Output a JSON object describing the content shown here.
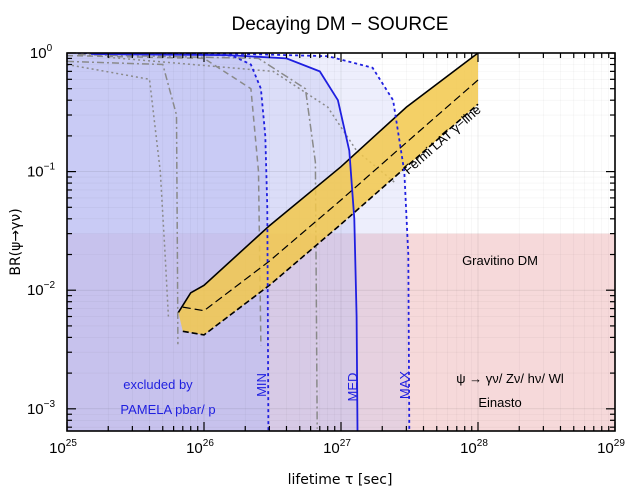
{
  "chart_data": {
    "type": "line",
    "title": "Decaying DM − SOURCE",
    "xlabel": "lifetime τ [sec]",
    "ylabel": "BR(ψ→γν)",
    "x_scale": "log",
    "y_scale": "log",
    "xlim": [
      1e+25,
      1e+29
    ],
    "ylim": [
      0.00065,
      1.0
    ],
    "x_ticks": [
      {
        "base": "10",
        "exp": "25",
        "value": 1e+25
      },
      {
        "base": "10",
        "exp": "26",
        "value": 1e+26
      },
      {
        "base": "10",
        "exp": "27",
        "value": 1e+27
      },
      {
        "base": "10",
        "exp": "28",
        "value": 1e+28
      },
      {
        "base": "10",
        "exp": "29",
        "value": 1e+29
      }
    ],
    "y_ticks": [
      {
        "base": "10",
        "exp": "0",
        "value": 1
      },
      {
        "base": "10",
        "exp": "−1",
        "value": 0.1
      },
      {
        "base": "10",
        "exp": "−2",
        "value": 0.01
      },
      {
        "base": "10",
        "exp": "−3",
        "value": 0.001
      }
    ],
    "series": [
      {
        "name": "MIN",
        "color": "#1f1fe0",
        "style": "dotted",
        "x": [
          1.2e+25,
          8e+25,
          1.6e+26,
          2.2e+26,
          2.6e+26,
          2.8e+26,
          2.9e+26,
          2.95e+26
        ],
        "y": [
          1.0,
          0.98,
          0.95,
          0.8,
          0.5,
          0.2,
          0.05,
          0.00065
        ]
      },
      {
        "name": "MED",
        "color": "#1f1fe0",
        "style": "solid",
        "x": [
          1.5e+25,
          1.5e+26,
          4e+26,
          7e+26,
          9.5e+26,
          1.15e+27,
          1.25e+27,
          1.3e+27,
          1.32e+27
        ],
        "y": [
          0.98,
          0.96,
          0.9,
          0.7,
          0.4,
          0.15,
          0.04,
          0.006,
          0.00065
        ]
      },
      {
        "name": "MAX",
        "color": "#1f1fe0",
        "style": "dotted",
        "x": [
          1.5e+25,
          2e+26,
          8e+26,
          1.7e+27,
          2.4e+27,
          2.9e+27,
          3.1e+27,
          3.15e+27
        ],
        "y": [
          0.99,
          0.98,
          0.94,
          0.75,
          0.4,
          0.1,
          0.02,
          0.00065
        ]
      }
    ],
    "fermi_band": {
      "label": "Fermi LAT γ−line",
      "lower": {
        "x": [
          7e+25,
          1e+26,
          3e+26,
          1e+27,
          3e+27,
          1e+28
        ],
        "y": [
          0.0045,
          0.0042,
          0.011,
          0.036,
          0.11,
          0.37
        ]
      },
      "upper": {
        "x": [
          6.5e+25,
          8e+25,
          1e+26,
          3e+26,
          1e+27,
          3e+27,
          1e+28
        ],
        "y": [
          0.0065,
          0.0095,
          0.011,
          0.035,
          0.11,
          0.35,
          1.0
        ]
      }
    },
    "annotations": {
      "excluded_line1": "excluded by",
      "excluded_line2": "PAMELA pbar/ p",
      "gravitino": "Gravitino DM",
      "channel": "ψ  →  γν/ Zν/ hν/ Wl",
      "profile": "Einasto",
      "label_min": "MIN",
      "label_med": "MED",
      "label_max": "MAX"
    },
    "colors": {
      "excluded_region": "#b9bcf2",
      "gravitino_region": "#f6d9da",
      "band_fill": "#f2c84b",
      "band_edge": "#000000",
      "pamela_lines": "#8a8a8a"
    },
    "grid": true
  }
}
